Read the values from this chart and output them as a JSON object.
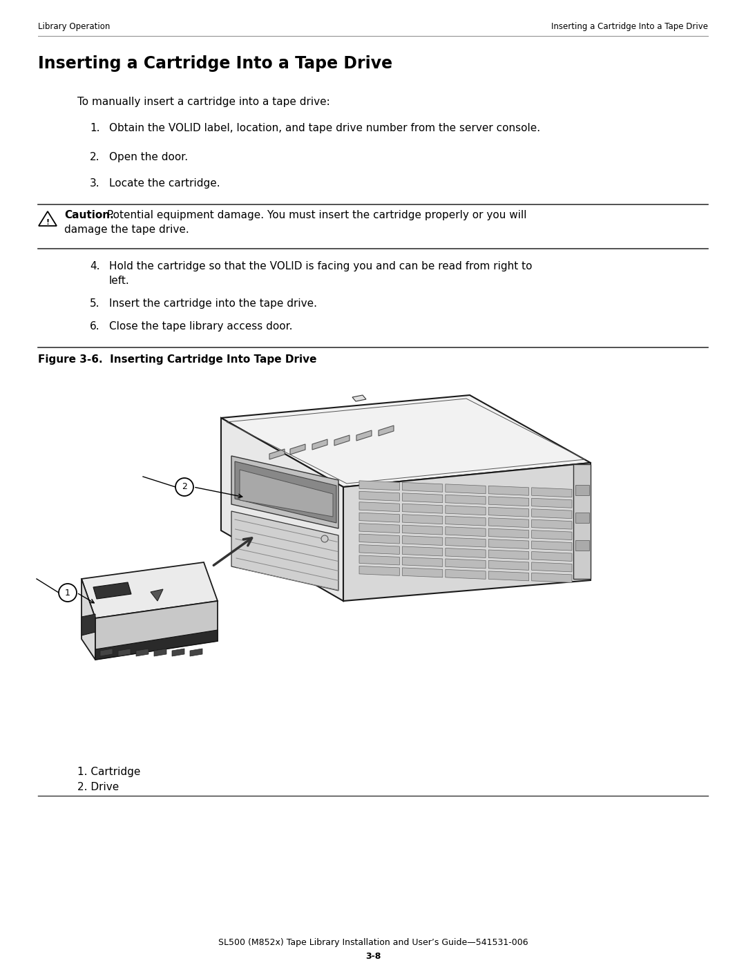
{
  "header_left": "Library Operation",
  "header_right": "Inserting a Cartridge Into a Tape Drive",
  "main_title": "Inserting a Cartridge Into a Tape Drive",
  "intro_text": "To manually insert a cartridge into a tape drive:",
  "steps_1_3": [
    "Obtain the VOLID label, location, and tape drive number from the server console.",
    "Open the door.",
    "Locate the cartridge."
  ],
  "caution_bold": "Caution.",
  "caution_line1": " Potential equipment damage. You must insert the cartridge properly or you will",
  "caution_line2": "damage the tape drive.",
  "steps_4_6": [
    "Hold the cartridge so that the VOLID is facing you and can be read from right to\nleft.",
    "Insert the cartridge into the tape drive.",
    "Close the tape library access door."
  ],
  "figure_title": "Figure 3-6.  Inserting Cartridge Into Tape Drive",
  "legend": [
    "1. Cartridge",
    "2. Drive"
  ],
  "footer": "SL500 (M852x) Tape Library Installation and User’s Guide—541531-006",
  "page_num": "3-8",
  "bg_color": "#ffffff",
  "text_color": "#000000",
  "line_color": "#000000"
}
